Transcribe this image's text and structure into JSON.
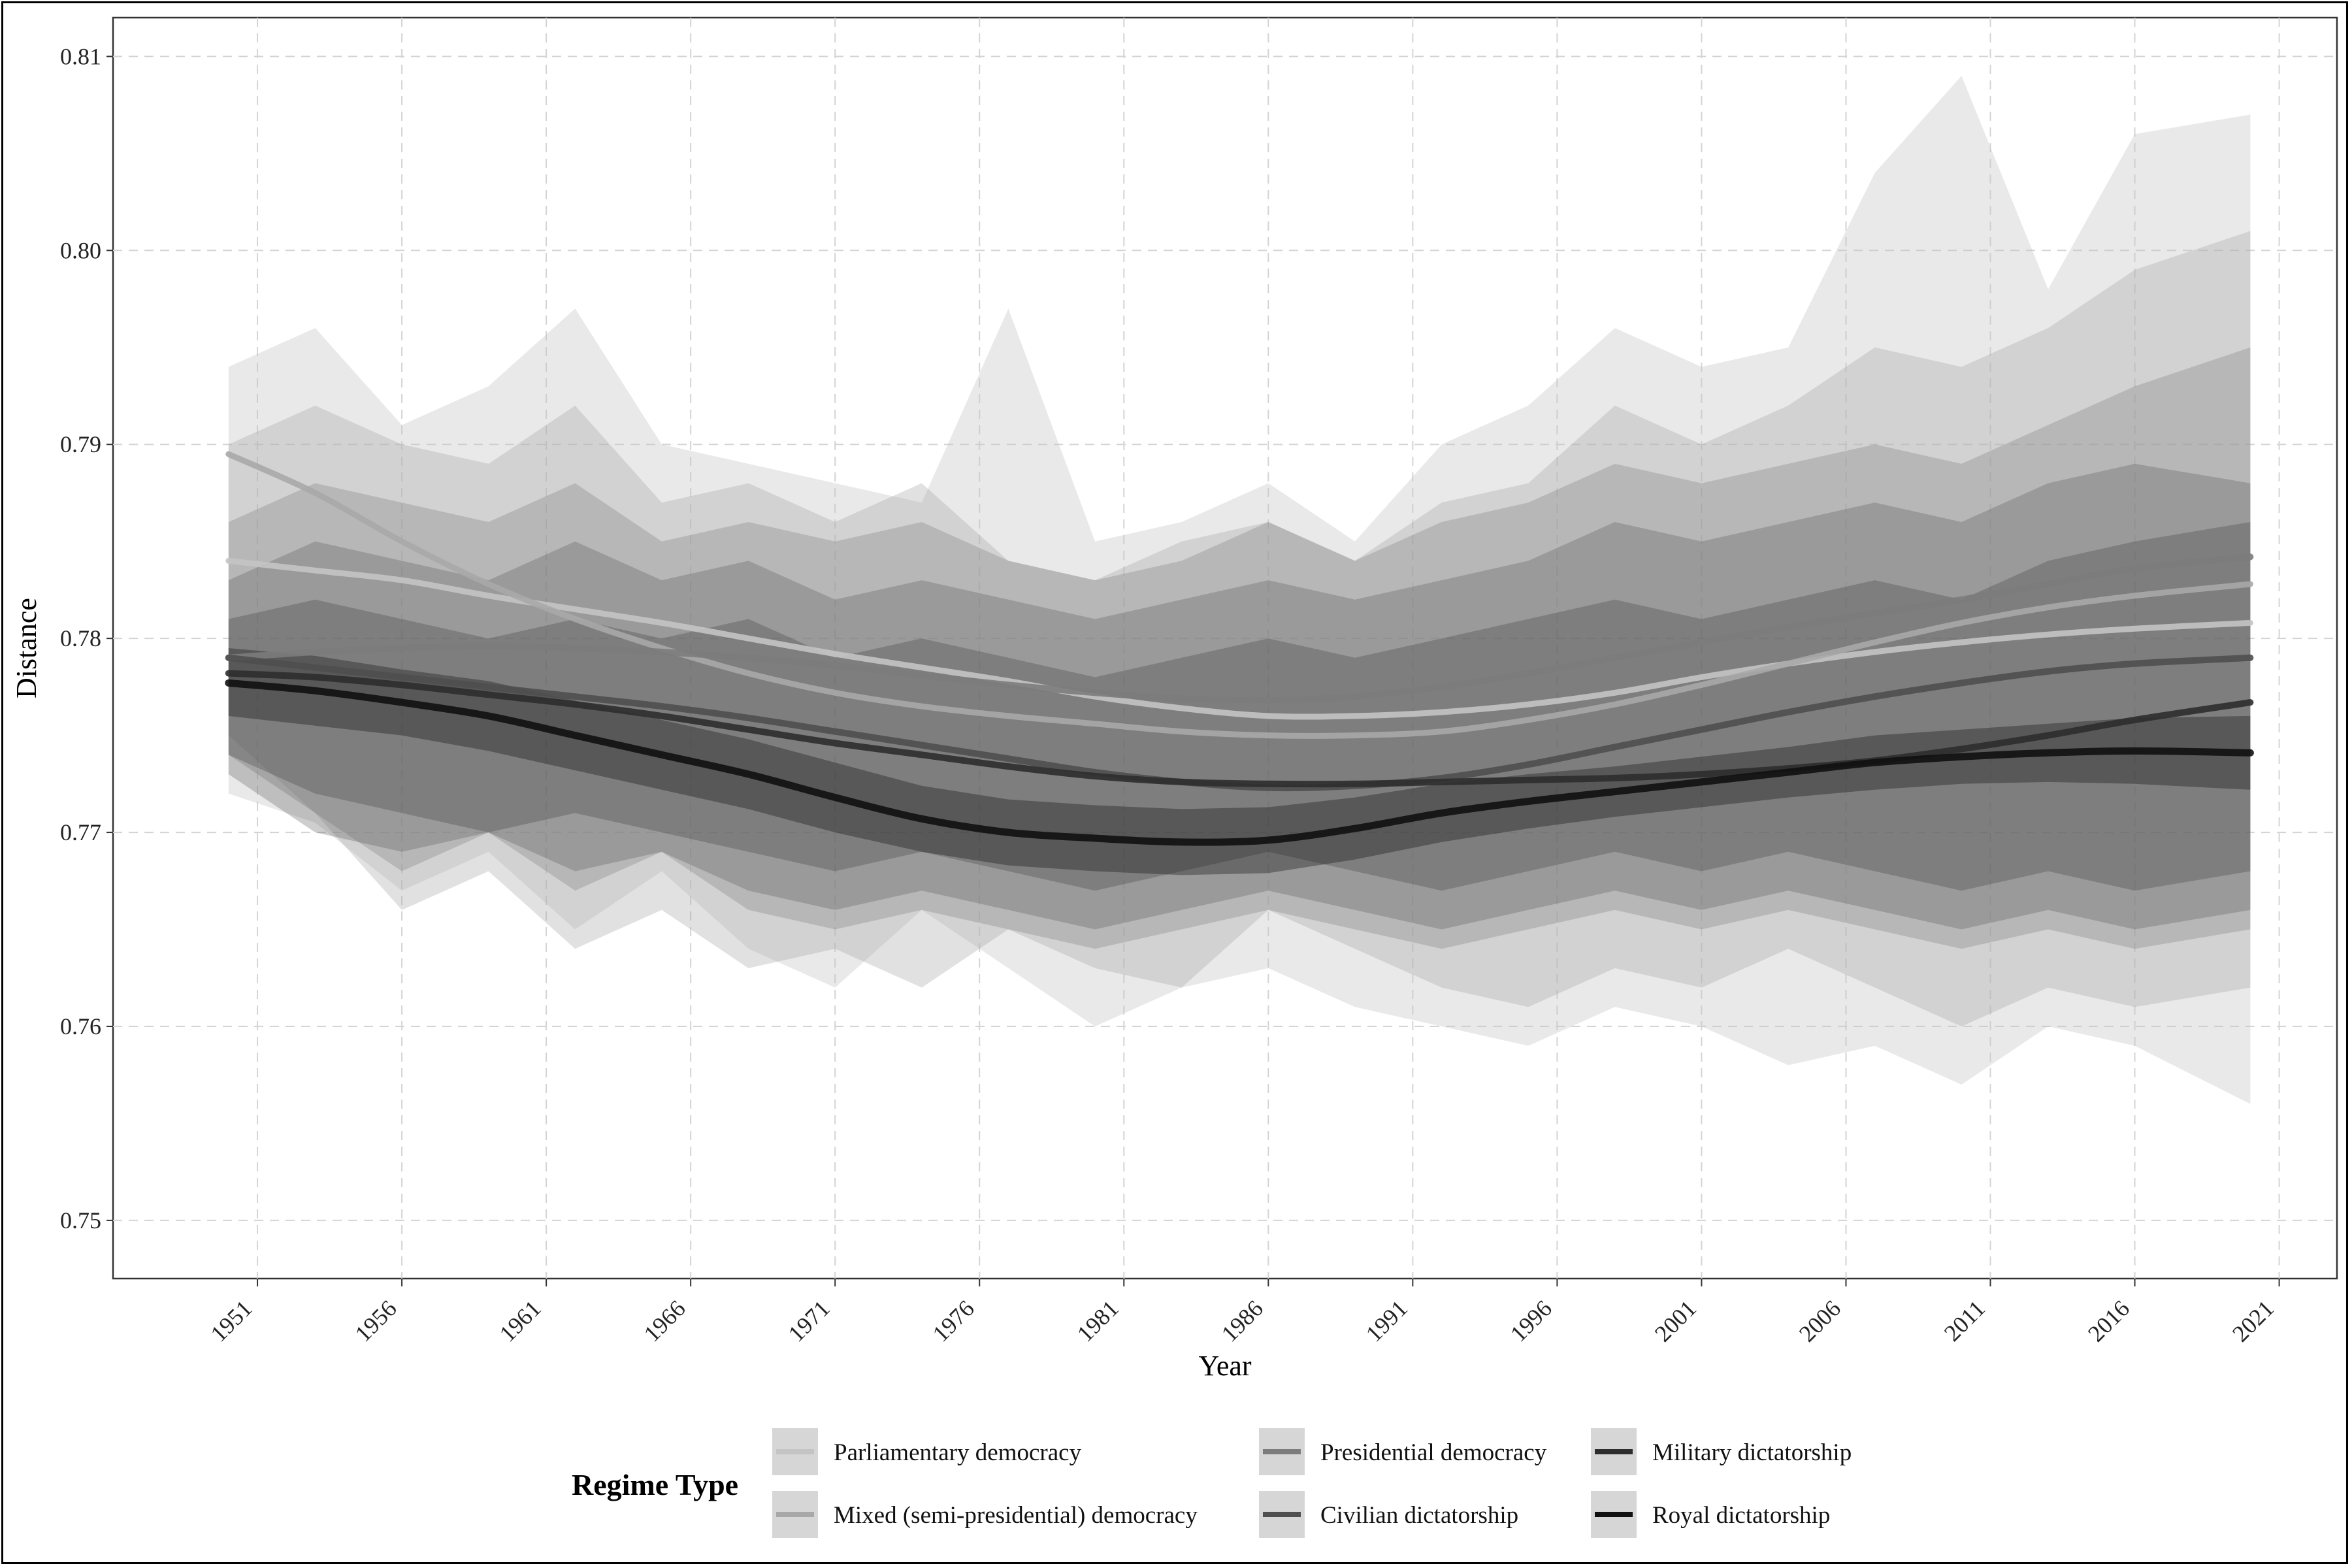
{
  "chart_data": {
    "type": "line",
    "title": "",
    "xlabel": "Year",
    "ylabel": "Distance",
    "xlim": [
      1946,
      2023
    ],
    "ylim": [
      0.747,
      0.812
    ],
    "x_ticks": [
      1951,
      1956,
      1961,
      1966,
      1971,
      1976,
      1981,
      1986,
      1991,
      1996,
      2001,
      2006,
      2011,
      2016,
      2021
    ],
    "y_ticks": [
      0.75,
      0.76,
      0.77,
      0.78,
      0.79,
      0.8,
      0.81
    ],
    "grid": true,
    "legend": {
      "title": "Regime Type",
      "placement": "bottom"
    },
    "years": [
      1950,
      1953,
      1956,
      1959,
      1962,
      1965,
      1968,
      1971,
      1974,
      1977,
      1980,
      1983,
      1986,
      1989,
      1992,
      1995,
      1998,
      2001,
      2004,
      2007,
      2010,
      2013,
      2016,
      2020
    ],
    "series": [
      {
        "name": "Parliamentary democracy",
        "color": "#c4c4c4",
        "smooth": [
          0.784,
          0.7835,
          0.783,
          0.7822,
          0.7815,
          0.7808,
          0.78,
          0.7792,
          0.7785,
          0.7778,
          0.777,
          0.7764,
          0.776,
          0.776,
          0.7762,
          0.7766,
          0.7772,
          0.778,
          0.7787,
          0.7793,
          0.7798,
          0.7802,
          0.7805,
          0.7808
        ],
        "band_lo": [
          0.772,
          0.7705,
          0.767,
          0.769,
          0.765,
          0.768,
          0.764,
          0.762,
          0.766,
          0.763,
          0.76,
          0.762,
          0.763,
          0.761,
          0.76,
          0.759,
          0.761,
          0.76,
          0.758,
          0.759,
          0.757,
          0.76,
          0.759,
          0.756
        ],
        "band_hi": [
          0.794,
          0.796,
          0.791,
          0.793,
          0.797,
          0.79,
          0.789,
          0.788,
          0.787,
          0.797,
          0.785,
          0.786,
          0.788,
          0.785,
          0.79,
          0.792,
          0.796,
          0.794,
          0.795,
          0.804,
          0.809,
          0.798,
          0.806,
          0.807
        ]
      },
      {
        "name": "Mixed (semi-presidential) democracy",
        "color": "#a8a8a8",
        "smooth": [
          0.7895,
          0.7875,
          0.785,
          0.7828,
          0.781,
          0.7795,
          0.7782,
          0.7772,
          0.7765,
          0.776,
          0.7756,
          0.7752,
          0.775,
          0.775,
          0.7752,
          0.7758,
          0.7766,
          0.7776,
          0.7787,
          0.7798,
          0.7808,
          0.7816,
          0.7822,
          0.7828
        ],
        "band_lo": [
          0.775,
          0.771,
          0.766,
          0.768,
          0.764,
          0.766,
          0.763,
          0.764,
          0.762,
          0.765,
          0.763,
          0.762,
          0.766,
          0.764,
          0.762,
          0.761,
          0.763,
          0.762,
          0.764,
          0.762,
          0.76,
          0.762,
          0.761,
          0.762
        ],
        "band_hi": [
          0.79,
          0.792,
          0.79,
          0.789,
          0.792,
          0.787,
          0.788,
          0.786,
          0.788,
          0.784,
          0.783,
          0.785,
          0.786,
          0.784,
          0.787,
          0.788,
          0.792,
          0.79,
          0.792,
          0.795,
          0.794,
          0.796,
          0.799,
          0.801
        ]
      },
      {
        "name": "Presidential democracy",
        "color": "#7c7c7c",
        "smooth": [
          0.779,
          0.7793,
          0.7795,
          0.7796,
          0.7795,
          0.7793,
          0.779,
          0.7786,
          0.7781,
          0.7776,
          0.7772,
          0.7769,
          0.7768,
          0.777,
          0.7775,
          0.7782,
          0.779,
          0.7798,
          0.7806,
          0.7813,
          0.782,
          0.7828,
          0.7836,
          0.7842
        ],
        "band_lo": [
          0.774,
          0.771,
          0.768,
          0.77,
          0.767,
          0.769,
          0.766,
          0.765,
          0.766,
          0.765,
          0.764,
          0.765,
          0.766,
          0.765,
          0.764,
          0.765,
          0.766,
          0.765,
          0.766,
          0.765,
          0.764,
          0.765,
          0.764,
          0.765
        ],
        "band_hi": [
          0.786,
          0.788,
          0.787,
          0.786,
          0.788,
          0.785,
          0.786,
          0.785,
          0.786,
          0.784,
          0.783,
          0.784,
          0.786,
          0.784,
          0.786,
          0.787,
          0.789,
          0.788,
          0.789,
          0.79,
          0.789,
          0.791,
          0.793,
          0.795
        ]
      },
      {
        "name": "Civilian dictatorship",
        "color": "#4f4f4f",
        "smooth": [
          0.779,
          0.7785,
          0.778,
          0.7775,
          0.777,
          0.7765,
          0.7759,
          0.7752,
          0.7745,
          0.7738,
          0.7731,
          0.7726,
          0.7723,
          0.7724,
          0.7728,
          0.7735,
          0.7744,
          0.7753,
          0.7762,
          0.777,
          0.7777,
          0.7783,
          0.7787,
          0.779
        ],
        "band_lo": [
          0.773,
          0.77,
          0.769,
          0.77,
          0.768,
          0.769,
          0.767,
          0.766,
          0.767,
          0.766,
          0.765,
          0.766,
          0.767,
          0.766,
          0.765,
          0.766,
          0.767,
          0.766,
          0.767,
          0.766,
          0.765,
          0.766,
          0.765,
          0.766
        ],
        "band_hi": [
          0.783,
          0.785,
          0.784,
          0.783,
          0.785,
          0.783,
          0.784,
          0.782,
          0.783,
          0.782,
          0.781,
          0.782,
          0.783,
          0.782,
          0.783,
          0.784,
          0.786,
          0.785,
          0.786,
          0.787,
          0.786,
          0.788,
          0.789,
          0.788
        ]
      },
      {
        "name": "Military dictatorship",
        "color": "#2e2e2e",
        "smooth": [
          0.7782,
          0.778,
          0.7776,
          0.7771,
          0.7766,
          0.776,
          0.7753,
          0.7746,
          0.774,
          0.7734,
          0.7729,
          0.7726,
          0.7725,
          0.7725,
          0.7726,
          0.7727,
          0.7728,
          0.773,
          0.7733,
          0.7737,
          0.7743,
          0.775,
          0.7758,
          0.7767
        ],
        "band_lo": [
          0.774,
          0.772,
          0.771,
          0.77,
          0.771,
          0.77,
          0.769,
          0.768,
          0.769,
          0.768,
          0.767,
          0.768,
          0.769,
          0.768,
          0.767,
          0.768,
          0.769,
          0.768,
          0.769,
          0.768,
          0.767,
          0.768,
          0.767,
          0.768
        ],
        "band_hi": [
          0.781,
          0.782,
          0.781,
          0.78,
          0.781,
          0.78,
          0.781,
          0.779,
          0.78,
          0.779,
          0.778,
          0.779,
          0.78,
          0.779,
          0.78,
          0.781,
          0.782,
          0.781,
          0.782,
          0.783,
          0.782,
          0.784,
          0.785,
          0.786
        ]
      },
      {
        "name": "Royal dictatorship",
        "color": "#111111",
        "smooth": [
          0.7777,
          0.7773,
          0.7767,
          0.776,
          0.775,
          0.774,
          0.773,
          0.7718,
          0.7707,
          0.77,
          0.7697,
          0.7695,
          0.7696,
          0.7702,
          0.771,
          0.7716,
          0.7721,
          0.7726,
          0.7731,
          0.7736,
          0.7739,
          0.7741,
          0.7742,
          0.7741
        ],
        "band_lo": [
          0.776,
          0.7755,
          0.775,
          0.7742,
          0.7732,
          0.7722,
          0.7712,
          0.77,
          0.769,
          0.7683,
          0.768,
          0.7678,
          0.7679,
          0.7686,
          0.7695,
          0.7702,
          0.7708,
          0.7713,
          0.7718,
          0.7722,
          0.7725,
          0.7726,
          0.7725,
          0.7722
        ],
        "band_hi": [
          0.7795,
          0.7791,
          0.7784,
          0.7778,
          0.7768,
          0.7758,
          0.7748,
          0.7736,
          0.7724,
          0.7717,
          0.7714,
          0.7712,
          0.7713,
          0.7718,
          0.7725,
          0.773,
          0.7734,
          0.7739,
          0.7744,
          0.775,
          0.7753,
          0.7756,
          0.7759,
          0.776
        ]
      }
    ]
  }
}
